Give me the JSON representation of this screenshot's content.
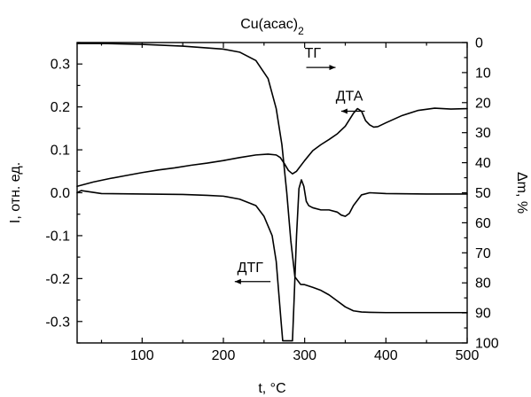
{
  "chart_data": {
    "type": "line",
    "title": "Cu(acac)2",
    "xlabel": "t, °C",
    "ylabel_left": "I, отн. ед.",
    "ylabel_right": "Δm, %",
    "xlim": [
      20,
      500
    ],
    "ylim_left": [
      -0.35,
      0.35
    ],
    "ylim_right": [
      100,
      0
    ],
    "x_ticks": [
      "100",
      "200",
      "300",
      "400",
      "500"
    ],
    "y_left_ticks": [
      "0.3",
      "0.2",
      "0.1",
      "0.0",
      "-0.1",
      "-0.2",
      "-0.3"
    ],
    "y_right_ticks": [
      "0",
      "10",
      "20",
      "30",
      "40",
      "50",
      "60",
      "70",
      "80",
      "90",
      "100"
    ],
    "grid": false,
    "series": [
      {
        "name": "ТГ",
        "axis": "right",
        "x": [
          20,
          50,
          100,
          150,
          200,
          220,
          240,
          255,
          265,
          272,
          278,
          283,
          288,
          295,
          300,
          310,
          320,
          330,
          340,
          350,
          360,
          370,
          380,
          400,
          450,
          500
        ],
        "y": [
          0.3,
          0.3,
          0.6,
          1.2,
          2.2,
          3.2,
          6,
          12,
          22,
          34,
          50,
          66,
          78,
          80.5,
          80.6,
          81.5,
          82.5,
          84,
          86,
          88,
          89.3,
          89.7,
          89.8,
          89.9,
          89.9,
          89.9
        ]
      },
      {
        "name": "ДТА",
        "axis": "left",
        "x": [
          20,
          40,
          60,
          80,
          100,
          120,
          140,
          160,
          180,
          200,
          220,
          240,
          255,
          265,
          270,
          275,
          280,
          285,
          290,
          300,
          310,
          320,
          330,
          340,
          350,
          355,
          360,
          365,
          370,
          375,
          380,
          385,
          390,
          400,
          420,
          440,
          460,
          480,
          500
        ],
        "y": [
          0.015,
          0.025,
          0.033,
          0.04,
          0.047,
          0.053,
          0.058,
          0.064,
          0.069,
          0.075,
          0.082,
          0.088,
          0.09,
          0.088,
          0.082,
          0.068,
          0.052,
          0.044,
          0.05,
          0.075,
          0.098,
          0.112,
          0.124,
          0.137,
          0.155,
          0.17,
          0.185,
          0.196,
          0.19,
          0.168,
          0.158,
          0.153,
          0.154,
          0.163,
          0.18,
          0.192,
          0.197,
          0.195,
          0.196
        ]
      },
      {
        "name": "ДТГ",
        "axis": "left",
        "x": [
          20,
          25,
          50,
          100,
          150,
          180,
          200,
          220,
          240,
          250,
          260,
          265,
          268,
          271,
          273,
          285,
          287,
          290,
          293,
          296,
          299,
          302,
          305,
          310,
          320,
          330,
          340,
          345,
          350,
          355,
          360,
          370,
          380,
          400,
          450,
          500
        ],
        "y": [
          0.0,
          0.005,
          -0.002,
          -0.003,
          -0.004,
          -0.006,
          -0.008,
          -0.015,
          -0.03,
          -0.055,
          -0.1,
          -0.16,
          -0.23,
          -0.3,
          -0.345,
          -0.345,
          -0.25,
          -0.1,
          0.01,
          0.03,
          0.015,
          -0.02,
          -0.03,
          -0.035,
          -0.04,
          -0.04,
          -0.045,
          -0.052,
          -0.055,
          -0.048,
          -0.03,
          -0.005,
          0.0,
          -0.002,
          -0.003,
          -0.003
        ]
      }
    ],
    "annotations": [
      {
        "text": "ТГ",
        "arrow": "right"
      },
      {
        "text": "ДТА",
        "arrow": "left"
      },
      {
        "text": "ДТГ",
        "arrow": "left"
      }
    ]
  }
}
